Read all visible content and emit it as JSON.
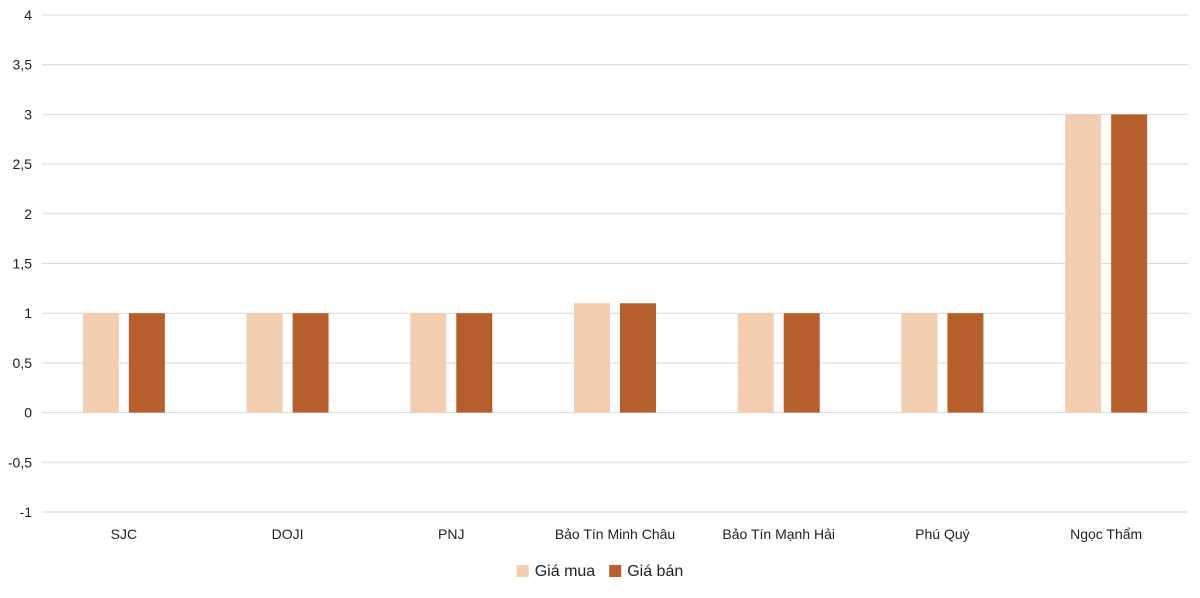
{
  "chart_data": {
    "type": "bar",
    "title": "",
    "xlabel": "",
    "ylabel": "",
    "categories": [
      "SJC",
      "DOJI",
      "PNJ",
      "Bảo Tín Minh Châu",
      "Bảo Tín Mạnh Hải",
      "Phú Quý",
      "Ngọc Thẩm"
    ],
    "series": [
      {
        "name": "Giá mua",
        "color": "#F2CDB0",
        "values": [
          1,
          1,
          1,
          1.1,
          1,
          1,
          3
        ]
      },
      {
        "name": "Giá bán",
        "color": "#B5602A",
        "values": [
          1,
          1,
          1,
          1.1,
          1,
          1,
          3
        ]
      }
    ],
    "ylim": [
      -1,
      4
    ],
    "yticks": [
      -1,
      -0.5,
      0,
      0.5,
      1,
      1.5,
      2,
      2.5,
      3,
      3.5,
      4
    ],
    "ytick_labels": [
      "-1",
      "-0,5",
      "0",
      "0,5",
      "1",
      "1,5",
      "2",
      "2,5",
      "3",
      "3,5",
      "4"
    ],
    "grid": true,
    "legend_position": "bottom-center",
    "gridline_color": "#D9D9D9"
  }
}
